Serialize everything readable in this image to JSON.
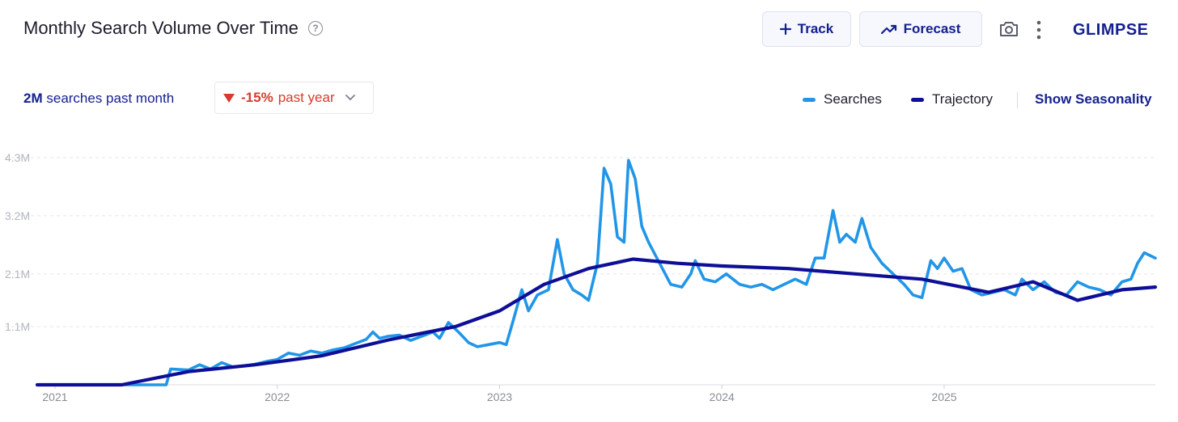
{
  "header": {
    "title": "Monthly Search Volume Over Time",
    "help_icon": "question-circle-icon",
    "track_label": "Track",
    "forecast_label": "Forecast",
    "brand": "GLIMPSE"
  },
  "summary": {
    "volume_value": "2M",
    "volume_text": "searches past month",
    "change_value": "-15%",
    "change_text": "past year",
    "change_color": "#d93a2e"
  },
  "legend": {
    "searches_label": "Searches",
    "trajectory_label": "Trajectory",
    "seasonality_label": "Show Seasonality"
  },
  "colors": {
    "searches": "#2196e8",
    "trajectory": "#0e0e96",
    "accent": "#15208f"
  },
  "chart_data": {
    "type": "line",
    "x_ticks": [
      "2021",
      "2022",
      "2023",
      "2024",
      "2025"
    ],
    "y_ticks": [
      "4.3M",
      "3.2M",
      "2.1M",
      "1.1M"
    ],
    "y_tick_values": [
      4300000,
      3200000,
      2100000,
      1100000
    ],
    "ylim": [
      0,
      4300000
    ],
    "xlim": [
      2020.92,
      2025.95
    ],
    "grid": true,
    "legend_position": "top-right",
    "series": [
      {
        "name": "Searches",
        "points": [
          [
            2020.92,
            0
          ],
          [
            2021.5,
            0
          ],
          [
            2021.52,
            300000
          ],
          [
            2021.6,
            280000
          ],
          [
            2021.65,
            380000
          ],
          [
            2021.7,
            300000
          ],
          [
            2021.75,
            420000
          ],
          [
            2021.8,
            340000
          ],
          [
            2021.85,
            360000
          ],
          [
            2021.9,
            390000
          ],
          [
            2021.95,
            440000
          ],
          [
            2022.0,
            480000
          ],
          [
            2022.05,
            600000
          ],
          [
            2022.1,
            560000
          ],
          [
            2022.15,
            640000
          ],
          [
            2022.2,
            600000
          ],
          [
            2022.25,
            660000
          ],
          [
            2022.3,
            700000
          ],
          [
            2022.35,
            780000
          ],
          [
            2022.4,
            860000
          ],
          [
            2022.43,
            1000000
          ],
          [
            2022.46,
            880000
          ],
          [
            2022.5,
            920000
          ],
          [
            2022.55,
            940000
          ],
          [
            2022.6,
            840000
          ],
          [
            2022.65,
            920000
          ],
          [
            2022.7,
            1000000
          ],
          [
            2022.73,
            880000
          ],
          [
            2022.77,
            1180000
          ],
          [
            2022.82,
            980000
          ],
          [
            2022.86,
            800000
          ],
          [
            2022.9,
            720000
          ],
          [
            2022.95,
            760000
          ],
          [
            2023.0,
            800000
          ],
          [
            2023.03,
            760000
          ],
          [
            2023.06,
            1200000
          ],
          [
            2023.1,
            1800000
          ],
          [
            2023.13,
            1400000
          ],
          [
            2023.17,
            1700000
          ],
          [
            2023.22,
            1800000
          ],
          [
            2023.26,
            2750000
          ],
          [
            2023.29,
            2100000
          ],
          [
            2023.33,
            1800000
          ],
          [
            2023.37,
            1700000
          ],
          [
            2023.4,
            1600000
          ],
          [
            2023.44,
            2300000
          ],
          [
            2023.47,
            4100000
          ],
          [
            2023.5,
            3800000
          ],
          [
            2023.53,
            2800000
          ],
          [
            2023.56,
            2700000
          ],
          [
            2023.58,
            4250000
          ],
          [
            2023.61,
            3900000
          ],
          [
            2023.64,
            3000000
          ],
          [
            2023.67,
            2700000
          ],
          [
            2023.72,
            2300000
          ],
          [
            2023.77,
            1900000
          ],
          [
            2023.82,
            1850000
          ],
          [
            2023.86,
            2100000
          ],
          [
            2023.88,
            2350000
          ],
          [
            2023.92,
            2000000
          ],
          [
            2023.97,
            1950000
          ],
          [
            2024.02,
            2100000
          ],
          [
            2024.08,
            1900000
          ],
          [
            2024.13,
            1850000
          ],
          [
            2024.18,
            1900000
          ],
          [
            2024.23,
            1800000
          ],
          [
            2024.28,
            1900000
          ],
          [
            2024.33,
            2000000
          ],
          [
            2024.38,
            1900000
          ],
          [
            2024.42,
            2400000
          ],
          [
            2024.46,
            2400000
          ],
          [
            2024.5,
            3300000
          ],
          [
            2024.53,
            2700000
          ],
          [
            2024.56,
            2850000
          ],
          [
            2024.6,
            2700000
          ],
          [
            2024.63,
            3150000
          ],
          [
            2024.67,
            2600000
          ],
          [
            2024.72,
            2300000
          ],
          [
            2024.77,
            2100000
          ],
          [
            2024.82,
            1900000
          ],
          [
            2024.86,
            1700000
          ],
          [
            2024.9,
            1650000
          ],
          [
            2024.94,
            2350000
          ],
          [
            2024.97,
            2200000
          ],
          [
            2025.0,
            2400000
          ],
          [
            2025.04,
            2150000
          ],
          [
            2025.08,
            2200000
          ],
          [
            2025.12,
            1800000
          ],
          [
            2025.17,
            1700000
          ],
          [
            2025.22,
            1750000
          ],
          [
            2025.27,
            1800000
          ],
          [
            2025.32,
            1700000
          ],
          [
            2025.35,
            2000000
          ],
          [
            2025.4,
            1800000
          ],
          [
            2025.45,
            1950000
          ],
          [
            2025.5,
            1750000
          ],
          [
            2025.55,
            1700000
          ],
          [
            2025.6,
            1950000
          ],
          [
            2025.65,
            1850000
          ],
          [
            2025.7,
            1800000
          ],
          [
            2025.75,
            1700000
          ],
          [
            2025.8,
            1950000
          ],
          [
            2025.84,
            2000000
          ],
          [
            2025.87,
            2300000
          ],
          [
            2025.9,
            2500000
          ],
          [
            2025.95,
            2400000
          ]
        ]
      },
      {
        "name": "Trajectory",
        "points": [
          [
            2020.92,
            0
          ],
          [
            2021.3,
            0
          ],
          [
            2021.6,
            250000
          ],
          [
            2021.9,
            380000
          ],
          [
            2022.2,
            550000
          ],
          [
            2022.5,
            850000
          ],
          [
            2022.8,
            1100000
          ],
          [
            2023.0,
            1400000
          ],
          [
            2023.2,
            1900000
          ],
          [
            2023.4,
            2200000
          ],
          [
            2023.6,
            2380000
          ],
          [
            2023.8,
            2300000
          ],
          [
            2024.0,
            2250000
          ],
          [
            2024.3,
            2200000
          ],
          [
            2024.6,
            2100000
          ],
          [
            2024.9,
            2000000
          ],
          [
            2025.2,
            1750000
          ],
          [
            2025.4,
            1950000
          ],
          [
            2025.6,
            1600000
          ],
          [
            2025.8,
            1800000
          ],
          [
            2025.95,
            1850000
          ]
        ]
      }
    ]
  }
}
